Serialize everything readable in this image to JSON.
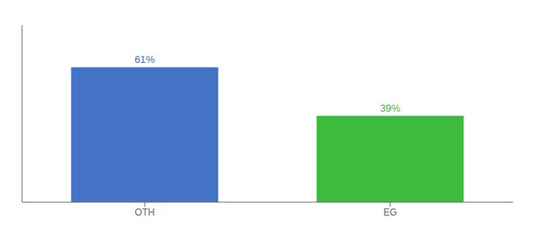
{
  "chart_data": {
    "type": "bar",
    "categories": [
      "OTH",
      "EG"
    ],
    "values": [
      61,
      39
    ],
    "value_labels": [
      "61%",
      "39%"
    ],
    "colors": [
      "#4472c4",
      "#3dbb3d"
    ],
    "ylim": [
      0,
      80
    ],
    "data_labels": true,
    "tick_labels": "x",
    "grid": false
  }
}
